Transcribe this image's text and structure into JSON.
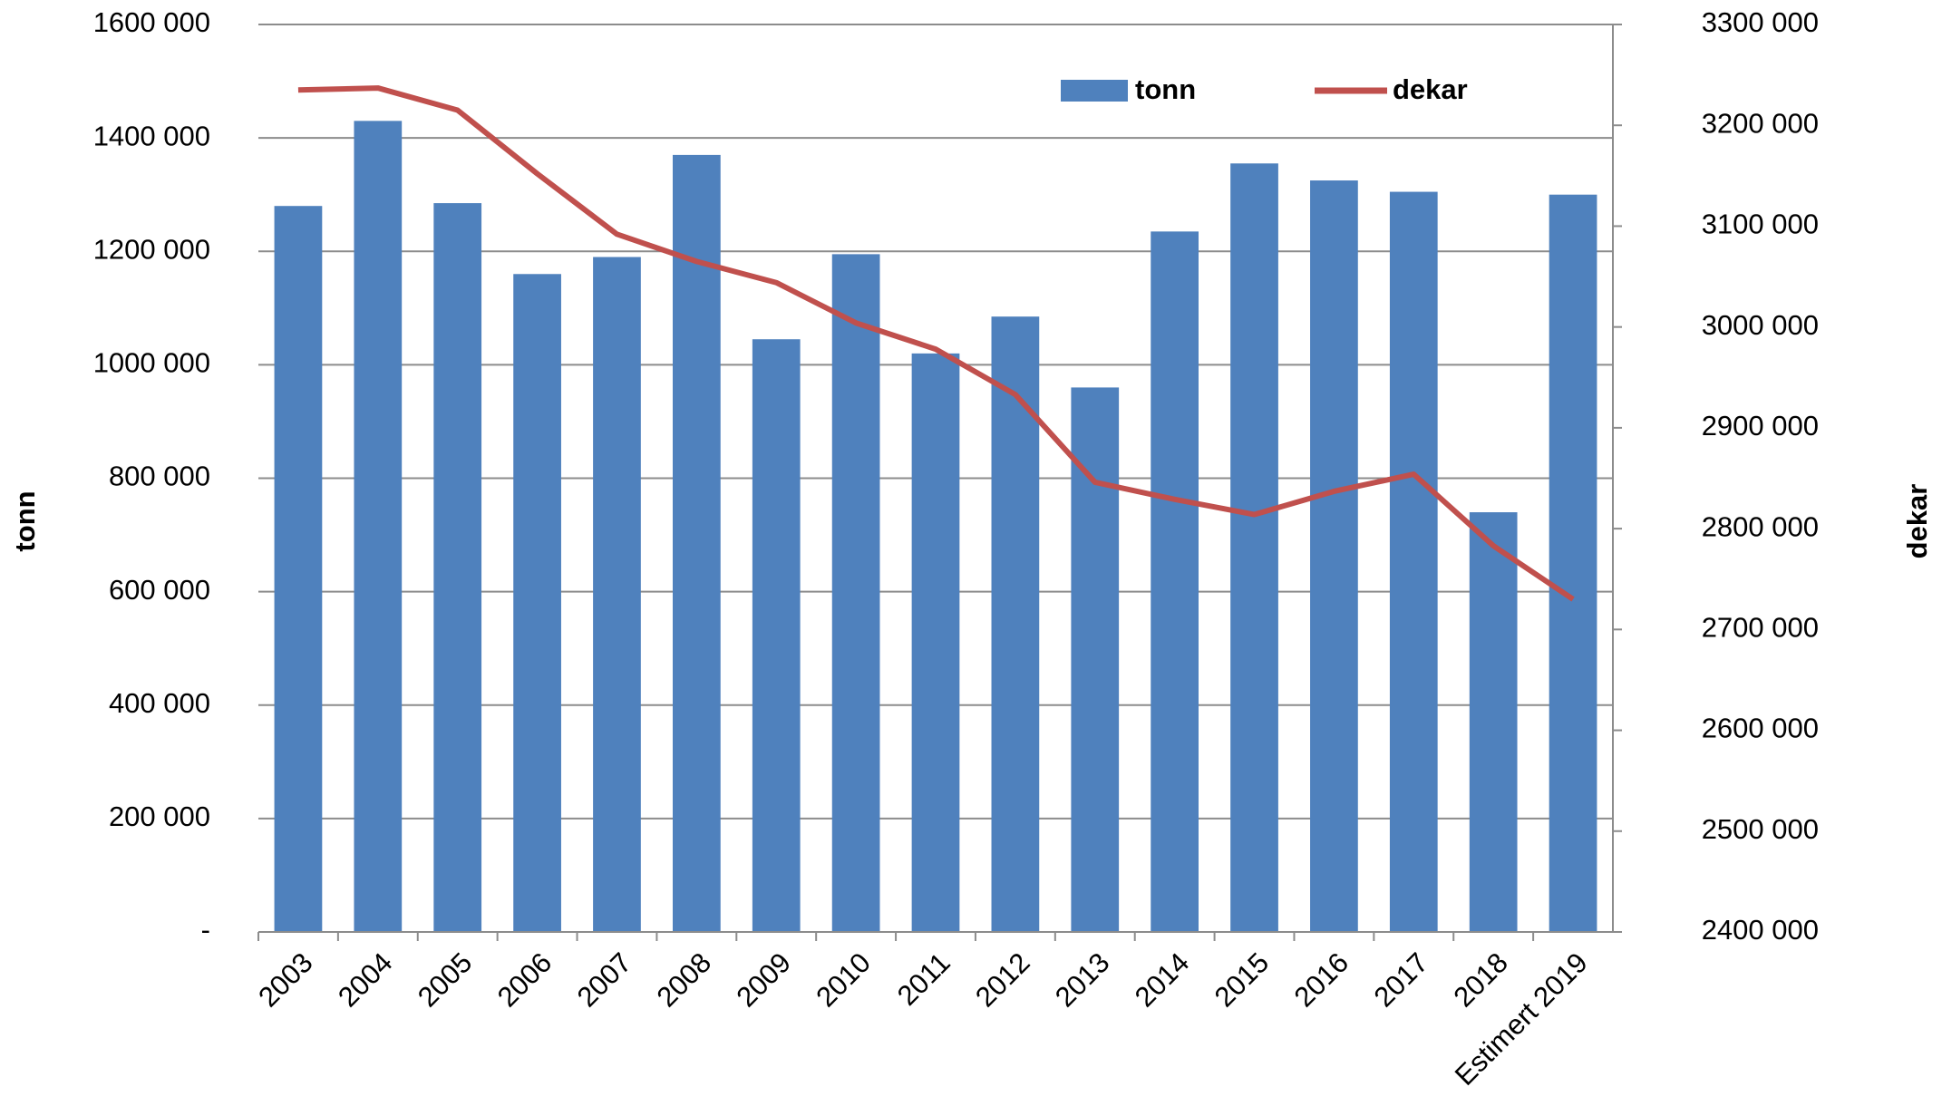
{
  "chart_data": {
    "type": "bar",
    "categories": [
      "2003",
      "2004",
      "2005",
      "2006",
      "2007",
      "2008",
      "2009",
      "2010",
      "2011",
      "2012",
      "2013",
      "2014",
      "2015",
      "2016",
      "2017",
      "2018",
      "Estimert 2019"
    ],
    "series": [
      {
        "name": "tonn",
        "type": "bar",
        "color": "#4f81bd",
        "values": [
          1280000,
          1430000,
          1285000,
          1160000,
          1190000,
          1370000,
          1045000,
          1195000,
          1020000,
          1085000,
          960000,
          1235000,
          1355000,
          1325000,
          1305000,
          740000,
          1300000
        ]
      },
      {
        "name": "dekar",
        "type": "line",
        "axis": "y2",
        "color": "#c0504d",
        "values": [
          3235000,
          3237000,
          3215000,
          3152000,
          3092000,
          3065000,
          3044000,
          3004000,
          2978000,
          2933000,
          2846000,
          2829000,
          2814000,
          2837000,
          2854000,
          2783000,
          2730000
        ]
      }
    ],
    "y_label": "tonn",
    "y2_label": "dekar",
    "ylim": [
      0,
      1600000
    ],
    "yticks": [
      {
        "value": 0,
        "label": "-"
      },
      {
        "value": 200000,
        "label": "200 000"
      },
      {
        "value": 400000,
        "label": "400 000"
      },
      {
        "value": 600000,
        "label": "600 000"
      },
      {
        "value": 800000,
        "label": "800 000"
      },
      {
        "value": 1000000,
        "label": "1000 000"
      },
      {
        "value": 1200000,
        "label": "1200 000"
      },
      {
        "value": 1400000,
        "label": "1400 000"
      },
      {
        "value": 1600000,
        "label": "1600 000"
      }
    ],
    "y2lim": [
      2400000,
      3300000
    ],
    "y2ticks": [
      {
        "value": 2400000,
        "label": "2400 000"
      },
      {
        "value": 2500000,
        "label": "2500 000"
      },
      {
        "value": 2600000,
        "label": "2600 000"
      },
      {
        "value": 2700000,
        "label": "2700 000"
      },
      {
        "value": 2800000,
        "label": "2800 000"
      },
      {
        "value": 2900000,
        "label": "2900 000"
      },
      {
        "value": 3000000,
        "label": "3000 000"
      },
      {
        "value": 3100000,
        "label": "3100 000"
      },
      {
        "value": 3200000,
        "label": "3200 000"
      },
      {
        "value": 3300000,
        "label": "3300 000"
      }
    ],
    "grid": true,
    "legend": "top-right"
  }
}
